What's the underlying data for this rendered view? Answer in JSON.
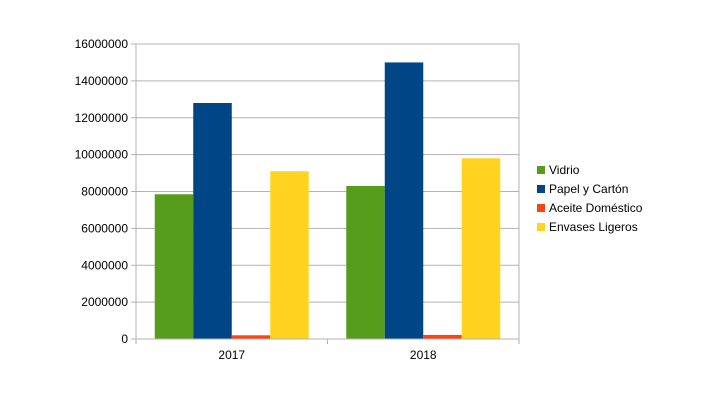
{
  "chart_data": {
    "type": "bar",
    "categories": [
      "2017",
      "2018"
    ],
    "series": [
      {
        "name": "Vidrio",
        "color": "#579d1c",
        "values": [
          7850000,
          8300000
        ]
      },
      {
        "name": "Papel y Cartón",
        "color": "#004586",
        "values": [
          12800000,
          15000000
        ]
      },
      {
        "name": "Aceite Doméstico",
        "color": "#ff420e",
        "values": [
          200000,
          220000
        ]
      },
      {
        "name": "Envases Ligeros",
        "color": "#ffd320",
        "values": [
          9100000,
          9800000
        ]
      }
    ],
    "ylim": [
      0,
      16000000
    ],
    "yticks": [
      "0",
      "2000000",
      "4000000",
      "6000000",
      "8000000",
      "10000000",
      "12000000",
      "14000000",
      "16000000"
    ],
    "grid": true,
    "legend": "right"
  }
}
